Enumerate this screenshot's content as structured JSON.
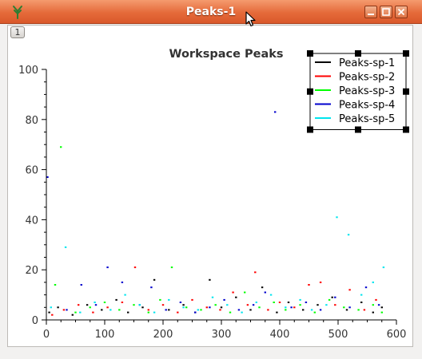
{
  "window": {
    "title": "Peaks-1",
    "tab_label": "1"
  },
  "icons": {
    "app": "plot-app-icon",
    "minimize": "minimize-icon",
    "maximize": "maximize-icon",
    "close": "close-icon",
    "cursor": "mouse-pointer-icon"
  },
  "chart_data": {
    "type": "scatter",
    "title": "Workspace Peaks",
    "xlabel": "",
    "ylabel": "",
    "xlim": [
      0,
      600
    ],
    "ylim": [
      0,
      100
    ],
    "x_ticks": [
      0,
      100,
      200,
      300,
      400,
      500,
      600
    ],
    "y_ticks": [
      0,
      20,
      40,
      60,
      80,
      100
    ],
    "legend_position": "top-right",
    "grid": false,
    "series": [
      {
        "name": "Peaks-sp-1",
        "color": "#000000",
        "x": [
          5,
          20,
          45,
          70,
          95,
          120,
          140,
          165,
          185,
          210,
          235,
          255,
          280,
          300,
          325,
          350,
          370,
          395,
          415,
          440,
          465,
          490,
          515,
          540,
          560,
          575
        ],
        "y": [
          3,
          5,
          2,
          6,
          4,
          8,
          3,
          5,
          16,
          4,
          6,
          3,
          16,
          5,
          9,
          4,
          13,
          3,
          7,
          4,
          6,
          9,
          4,
          7,
          3,
          5
        ]
      },
      {
        "name": "Peaks-sp-2",
        "color": "#ff0000",
        "x": [
          10,
          30,
          55,
          80,
          105,
          130,
          152,
          175,
          200,
          225,
          250,
          275,
          298,
          320,
          345,
          358,
          380,
          400,
          425,
          450,
          470,
          495,
          520,
          545,
          565
        ],
        "y": [
          2,
          4,
          6,
          3,
          5,
          7,
          21,
          4,
          6,
          3,
          8,
          5,
          4,
          11,
          6,
          19,
          4,
          7,
          5,
          14,
          15,
          6,
          12,
          4,
          8
        ]
      },
      {
        "name": "Peaks-sp-3",
        "color": "#00ff00",
        "x": [
          15,
          25,
          50,
          75,
          100,
          125,
          150,
          175,
          195,
          215,
          240,
          265,
          290,
          315,
          340,
          365,
          390,
          410,
          435,
          460,
          485,
          510,
          535,
          560,
          575
        ],
        "y": [
          14,
          69,
          3,
          5,
          7,
          4,
          6,
          3,
          8,
          21,
          5,
          4,
          6,
          3,
          11,
          5,
          7,
          4,
          6,
          3,
          8,
          5,
          4,
          6,
          3
        ]
      },
      {
        "name": "Peaks-sp-4",
        "color": "#0000cd",
        "x": [
          2,
          35,
          60,
          85,
          105,
          130,
          160,
          180,
          205,
          230,
          255,
          280,
          305,
          330,
          355,
          375,
          392,
          420,
          445,
          470,
          495,
          520,
          548,
          570
        ],
        "y": [
          57,
          4,
          14,
          6,
          21,
          15,
          6,
          13,
          4,
          7,
          3,
          5,
          8,
          4,
          6,
          11,
          83,
          5,
          7,
          4,
          9,
          5,
          13,
          6
        ]
      },
      {
        "name": "Peaks-sp-5",
        "color": "#00e5ee",
        "x": [
          8,
          33,
          58,
          83,
          110,
          135,
          160,
          185,
          210,
          235,
          260,
          285,
          310,
          335,
          360,
          385,
          410,
          435,
          455,
          480,
          498,
          518,
          540,
          560,
          578
        ],
        "y": [
          5,
          29,
          3,
          7,
          4,
          10,
          6,
          3,
          8,
          5,
          4,
          9,
          6,
          3,
          7,
          10,
          5,
          8,
          4,
          6,
          41,
          34,
          10,
          15,
          21
        ]
      }
    ]
  }
}
